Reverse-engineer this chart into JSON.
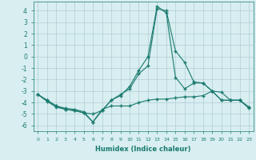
{
  "xlabel": "Humidex (Indice chaleur)",
  "x": [
    0,
    1,
    2,
    3,
    4,
    5,
    6,
    7,
    8,
    9,
    10,
    11,
    12,
    13,
    14,
    15,
    16,
    17,
    18,
    19,
    20,
    21,
    22,
    23
  ],
  "line1": [
    -3.3,
    -3.8,
    -4.3,
    -4.5,
    -4.6,
    -4.8,
    -5.7,
    -4.6,
    -4.3,
    -4.3,
    -4.3,
    -4.0,
    -3.8,
    -3.7,
    -3.7,
    -3.6,
    -3.5,
    -3.5,
    -3.4,
    -3.0,
    -3.1,
    -3.8,
    -3.8,
    -4.4
  ],
  "line2": [
    -3.3,
    -3.8,
    -4.3,
    -4.6,
    -4.7,
    -4.9,
    -5.7,
    -4.7,
    -3.8,
    -3.3,
    -2.8,
    -1.5,
    -0.8,
    4.2,
    4.0,
    0.5,
    -0.5,
    -2.2,
    -2.3,
    -3.0,
    -3.8,
    -3.8,
    -3.8,
    -4.4
  ],
  "line3": [
    -3.3,
    -3.9,
    -4.4,
    -4.6,
    -4.7,
    -4.9,
    -5.0,
    -4.7,
    -3.8,
    -3.4,
    -2.6,
    -1.2,
    0.0,
    4.4,
    3.8,
    -1.8,
    -2.8,
    -2.3,
    -2.3,
    -3.0,
    -3.8,
    -3.8,
    -3.8,
    -4.5
  ],
  "line_color": "#1a7a6e",
  "bg_color": "#d8eef0",
  "grid_color": "#b0cdd5",
  "ylim": [
    -6.5,
    4.8
  ],
  "yticks": [
    -6,
    -5,
    -4,
    -3,
    -2,
    -1,
    0,
    1,
    2,
    3,
    4
  ],
  "xticks": [
    0,
    1,
    2,
    3,
    4,
    5,
    6,
    7,
    8,
    9,
    10,
    11,
    12,
    13,
    14,
    15,
    16,
    17,
    18,
    19,
    20,
    21,
    22,
    23
  ],
  "marker": "+",
  "markersize": 3.0,
  "linewidth": 0.8
}
